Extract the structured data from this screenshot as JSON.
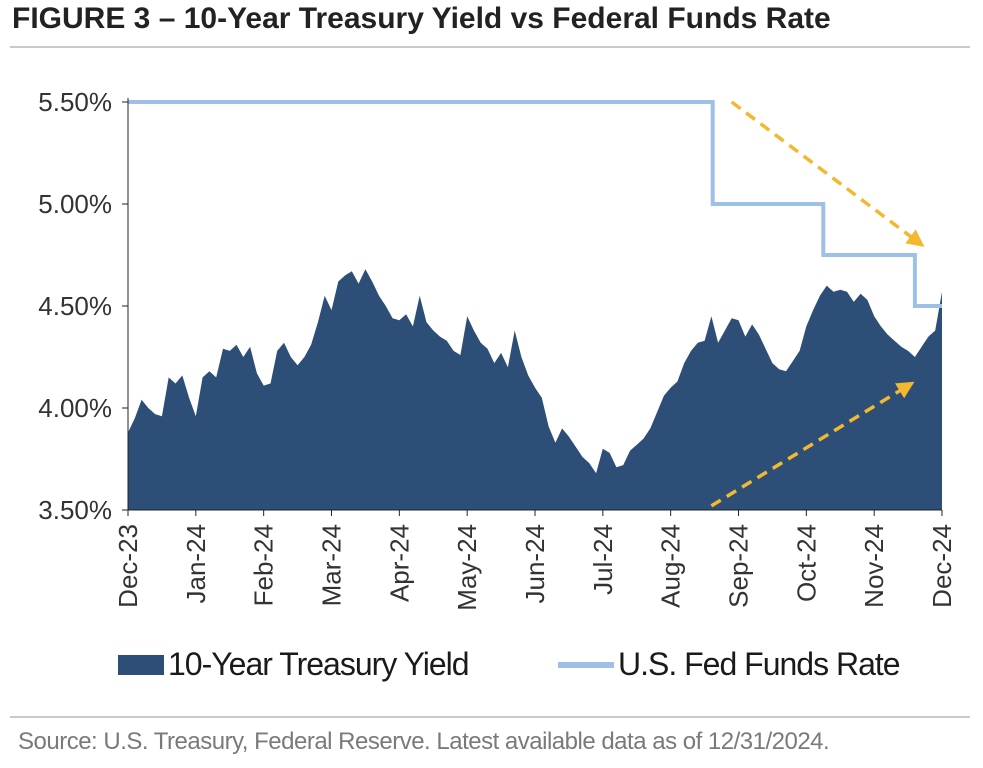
{
  "title": "FIGURE 3 – 10-Year Treasury Yield vs Federal Funds Rate",
  "source": "Source: U.S. Treasury, Federal Reserve. Latest available data as of 12/31/2024.",
  "legend": {
    "area_label": "10-Year Treasury Yield",
    "line_label": "U.S. Fed Funds Rate"
  },
  "colors": {
    "area": "#2d4f77",
    "line": "#9fc0e6",
    "arrow": "#f2b82f",
    "axis": "#222222"
  },
  "chart_data": {
    "type": "area",
    "ylim": [
      3.5,
      5.5
    ],
    "yticks": [
      3.5,
      4.0,
      4.5,
      5.0,
      5.5
    ],
    "ytick_labels": [
      "3.50%",
      "4.00%",
      "4.50%",
      "5.00%",
      "5.50%"
    ],
    "xlim": [
      0,
      12
    ],
    "xtick_labels": [
      "Dec-23",
      "Jan-24",
      "Feb-24",
      "Mar-24",
      "Apr-24",
      "May-24",
      "Jun-24",
      "Jul-24",
      "Aug-24",
      "Sep-24",
      "Oct-24",
      "Nov-24",
      "Dec-24"
    ],
    "series": [
      {
        "name": "10-Year Treasury Yield",
        "type": "area",
        "x": [
          0,
          0.1,
          0.2,
          0.3,
          0.4,
          0.5,
          0.6,
          0.7,
          0.8,
          0.9,
          1.0,
          1.1,
          1.2,
          1.3,
          1.4,
          1.5,
          1.6,
          1.7,
          1.8,
          1.9,
          2.0,
          2.1,
          2.2,
          2.3,
          2.4,
          2.5,
          2.6,
          2.7,
          2.8,
          2.9,
          3.0,
          3.1,
          3.2,
          3.3,
          3.4,
          3.5,
          3.6,
          3.7,
          3.8,
          3.9,
          4.0,
          4.1,
          4.2,
          4.3,
          4.4,
          4.5,
          4.6,
          4.7,
          4.8,
          4.9,
          5.0,
          5.1,
          5.2,
          5.3,
          5.4,
          5.5,
          5.6,
          5.7,
          5.8,
          5.9,
          6.0,
          6.1,
          6.2,
          6.3,
          6.4,
          6.5,
          6.6,
          6.7,
          6.8,
          6.9,
          7.0,
          7.1,
          7.2,
          7.3,
          7.4,
          7.5,
          7.6,
          7.7,
          7.8,
          7.9,
          8.0,
          8.1,
          8.2,
          8.3,
          8.4,
          8.5,
          8.6,
          8.7,
          8.8,
          8.9,
          9.0,
          9.1,
          9.2,
          9.3,
          9.4,
          9.5,
          9.6,
          9.7,
          9.8,
          9.9,
          10.0,
          10.1,
          10.2,
          10.3,
          10.4,
          10.5,
          10.6,
          10.7,
          10.8,
          10.9,
          11.0,
          11.1,
          11.2,
          11.3,
          11.4,
          11.5,
          11.6,
          11.7,
          11.8,
          11.9,
          12.0
        ],
        "values": [
          3.88,
          3.95,
          4.04,
          4.0,
          3.97,
          3.96,
          4.15,
          4.12,
          4.16,
          4.05,
          3.96,
          4.15,
          4.18,
          4.15,
          4.29,
          4.28,
          4.31,
          4.25,
          4.3,
          4.17,
          4.11,
          4.12,
          4.28,
          4.32,
          4.25,
          4.21,
          4.25,
          4.31,
          4.42,
          4.55,
          4.48,
          4.62,
          4.65,
          4.67,
          4.61,
          4.68,
          4.62,
          4.55,
          4.5,
          4.44,
          4.43,
          4.46,
          4.4,
          4.55,
          4.42,
          4.38,
          4.35,
          4.33,
          4.28,
          4.26,
          4.45,
          4.38,
          4.32,
          4.29,
          4.22,
          4.27,
          4.2,
          4.38,
          4.25,
          4.16,
          4.1,
          4.05,
          3.91,
          3.83,
          3.9,
          3.86,
          3.81,
          3.76,
          3.73,
          3.68,
          3.8,
          3.78,
          3.71,
          3.72,
          3.79,
          3.82,
          3.85,
          3.9,
          3.98,
          4.06,
          4.1,
          4.13,
          4.22,
          4.28,
          4.32,
          4.33,
          4.45,
          4.32,
          4.38,
          4.44,
          4.43,
          4.35,
          4.41,
          4.36,
          4.29,
          4.22,
          4.19,
          4.18,
          4.23,
          4.28,
          4.4,
          4.48,
          4.55,
          4.6,
          4.57,
          4.58,
          4.57,
          4.52,
          4.56,
          4.53,
          4.45,
          4.4,
          4.36,
          4.33,
          4.3,
          4.28,
          4.25,
          4.3,
          4.35,
          4.38,
          4.57
        ]
      },
      {
        "name": "U.S. Fed Funds Rate",
        "type": "step",
        "x": [
          0,
          8.62,
          8.62,
          10.25,
          10.25,
          11.6,
          11.6,
          12.0
        ],
        "values": [
          5.5,
          5.5,
          5.0,
          5.0,
          4.75,
          4.75,
          4.5,
          4.5
        ]
      }
    ],
    "annotations": [
      {
        "type": "arrow",
        "style": "dashed",
        "from": [
          8.9,
          5.5
        ],
        "to": [
          11.7,
          4.8
        ]
      },
      {
        "type": "arrow",
        "style": "dashed",
        "from": [
          8.6,
          3.52
        ],
        "to": [
          11.55,
          4.12
        ]
      }
    ]
  }
}
